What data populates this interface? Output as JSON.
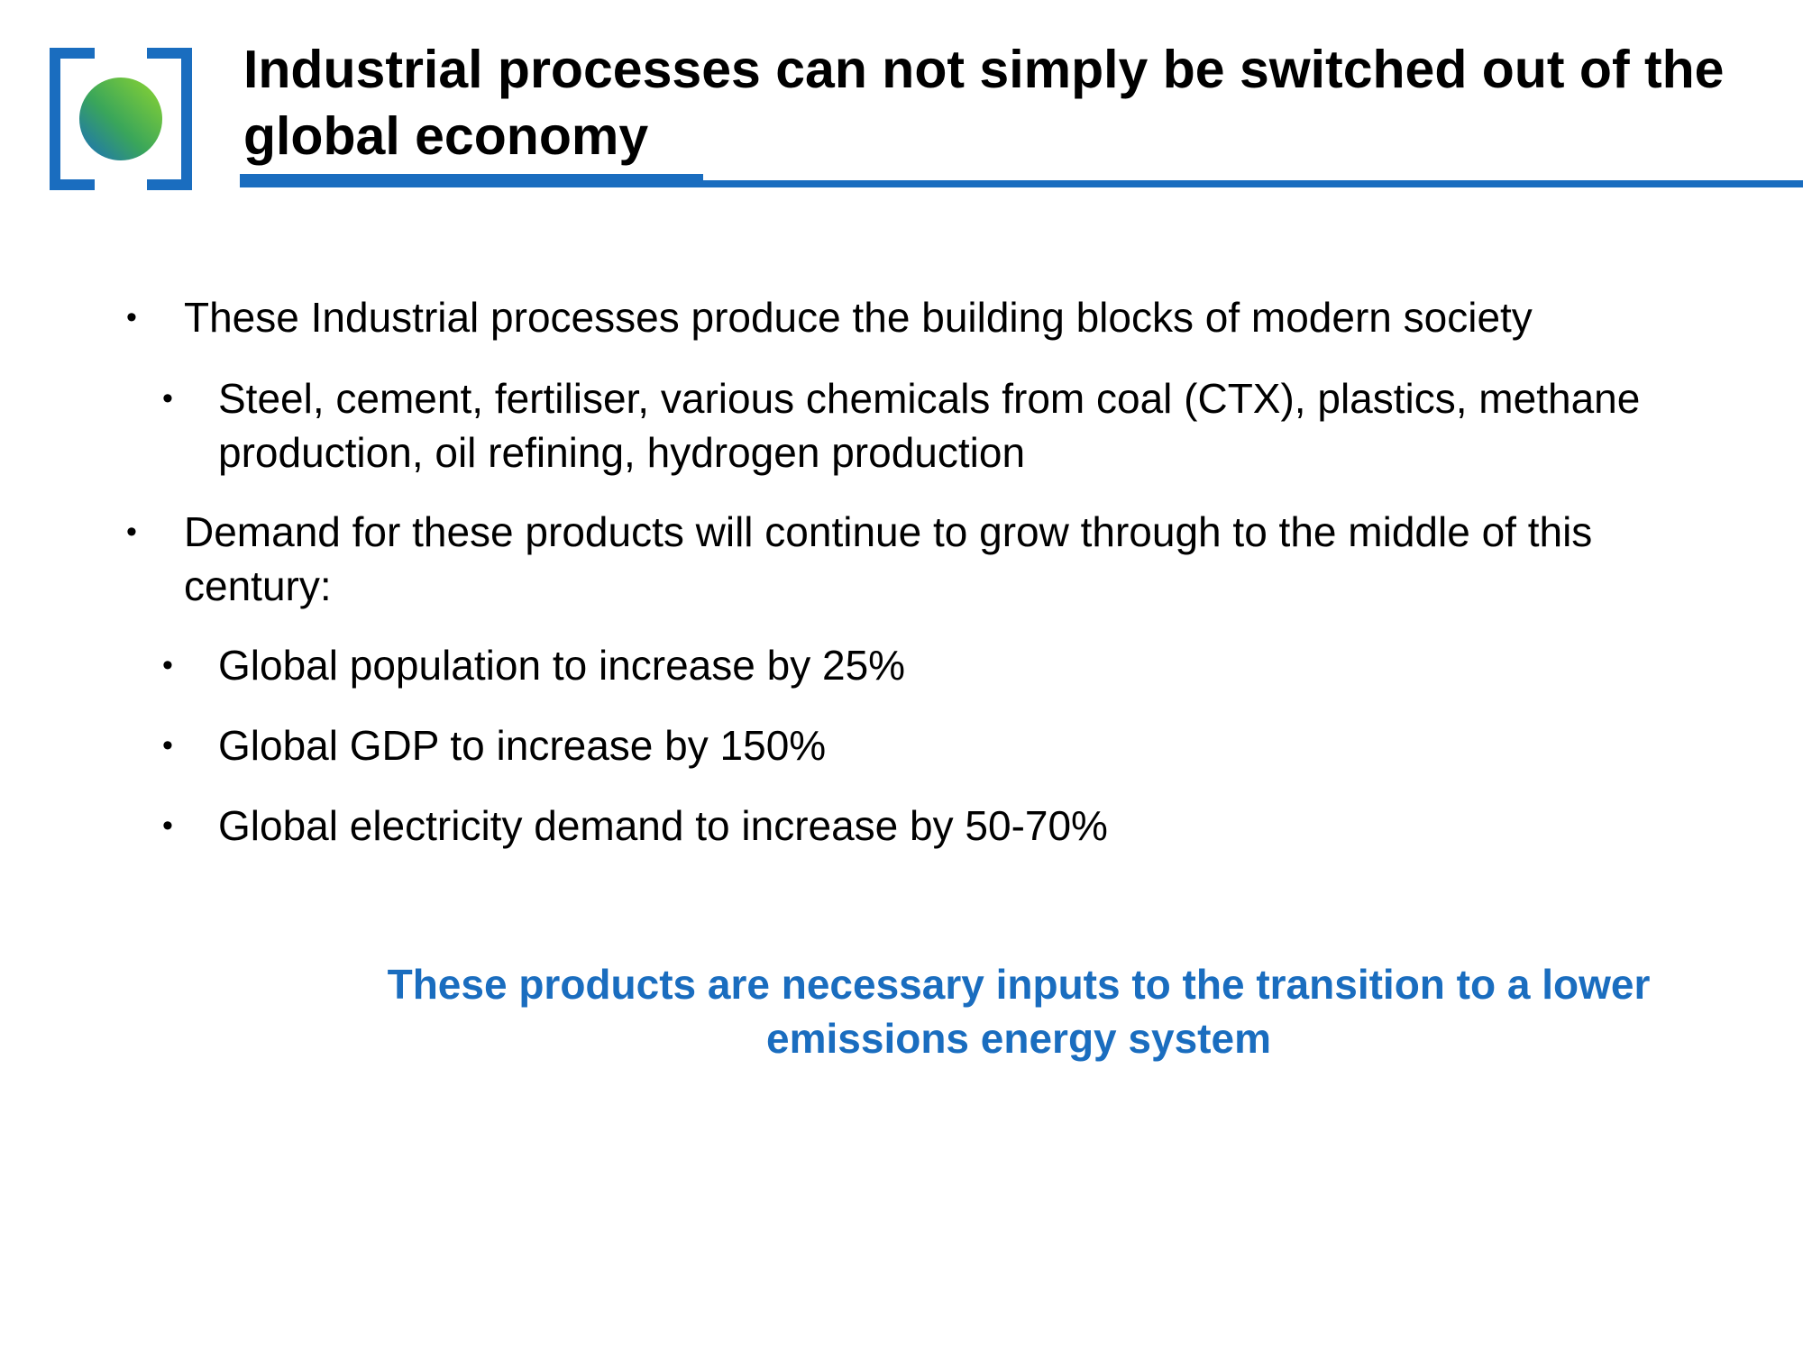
{
  "slide": {
    "title": "Industrial processes can not simply be switched out of the global economy",
    "logo_icon": "bracketed-globe-logo",
    "accent_color": "#1a6dbf",
    "bullet_char": "•",
    "bullets": [
      {
        "text": "These Industrial processes produce the building blocks of modern society",
        "sub": [
          "Steel, cement, fertiliser, various chemicals from coal (CTX), plastics, methane production, oil refining, hydrogen production"
        ]
      },
      {
        "text": "Demand for these products will continue to grow through to the middle of this century:",
        "sub": [
          "Global population to increase by 25%",
          "Global GDP to increase by 150%",
          "Global electricity demand to increase by 50-70%"
        ]
      }
    ],
    "conclusion": "These products are necessary inputs to the transition to a lower emissions energy system"
  }
}
